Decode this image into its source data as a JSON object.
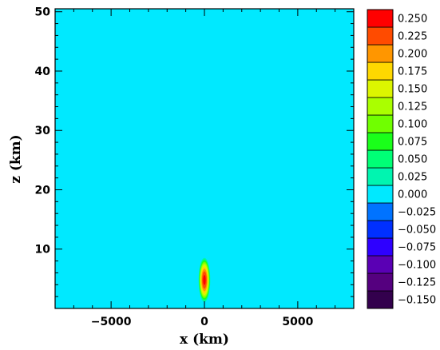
{
  "chart_data": {
    "type": "heatmap",
    "title": "",
    "xlabel": "x (km)",
    "ylabel": "z (km)",
    "xlim": [
      -8000,
      8000
    ],
    "ylim": [
      0,
      50.5
    ],
    "x_ticks": [
      -5000,
      0,
      5000
    ],
    "y_ticks": [
      10,
      20,
      30,
      40,
      50
    ],
    "background_value": 0.0,
    "feature": {
      "description_value_peak": 0.25,
      "center_x": 0,
      "center_z": 4.8,
      "half_width_x": 330,
      "half_height_z": 3.9
    },
    "colorbar": {
      "levels": [
        -0.15,
        -0.125,
        -0.1,
        -0.075,
        -0.05,
        -0.025,
        0.0,
        0.025,
        0.05,
        0.075,
        0.1,
        0.125,
        0.15,
        0.175,
        0.2,
        0.225,
        0.25
      ],
      "labels": [
        "-0.150",
        "-0.125",
        "-0.100",
        "-0.075",
        "-0.050",
        "-0.025",
        "0.000",
        "0.025",
        "0.050",
        "0.075",
        "0.100",
        "0.125",
        "0.150",
        "0.175",
        "0.200",
        "0.225",
        "0.250"
      ],
      "colors": [
        "#33004d",
        "#55007f",
        "#5a00b4",
        "#2e00ff",
        "#0030ff",
        "#0073ff",
        "#00e9ff",
        "#00f5b0",
        "#00ff76",
        "#1aff1a",
        "#70ff00",
        "#aaff00",
        "#dcf500",
        "#ffd800",
        "#ff9600",
        "#ff4b00",
        "#ff0000"
      ]
    }
  }
}
